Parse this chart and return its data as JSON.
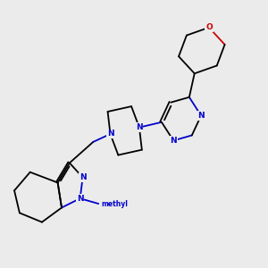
{
  "bg_color": "#ebebeb",
  "atom_color_N": "#0000cc",
  "atom_color_O": "#cc0000",
  "bond_color": "#000000",
  "bond_width": 1.3,
  "font_size_atom": 6.5,
  "fig_width": 3.0,
  "fig_height": 3.0,
  "dpi": 100,
  "xlim": [
    0,
    10
  ],
  "ylim": [
    0,
    10
  ]
}
